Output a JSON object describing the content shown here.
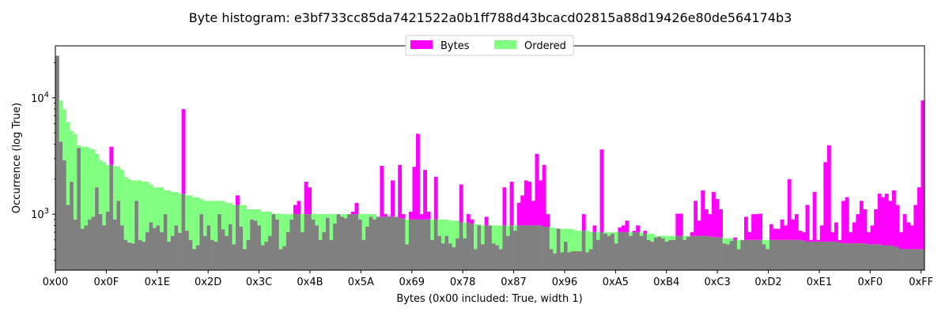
{
  "chart_data": {
    "type": "bar",
    "title": "Byte histogram: e3bf733cc85da7421522a0b1ff788d43bcacd02815a88d19426e80de564174b3",
    "xlabel": "Bytes (0x00 included: True, width 1)",
    "ylabel": "Occurrence (log True)",
    "y_scale": "log",
    "ylim": [
      330,
      28000
    ],
    "xlim": [
      0,
      255
    ],
    "x_ticks": [
      {
        "value": 0,
        "label": "0x00"
      },
      {
        "value": 15,
        "label": "0x0F"
      },
      {
        "value": 30,
        "label": "0x1E"
      },
      {
        "value": 45,
        "label": "0x2D"
      },
      {
        "value": 60,
        "label": "0x3C"
      },
      {
        "value": 75,
        "label": "0x4B"
      },
      {
        "value": 90,
        "label": "0x5A"
      },
      {
        "value": 105,
        "label": "0x69"
      },
      {
        "value": 120,
        "label": "0x78"
      },
      {
        "value": 135,
        "label": "0x87"
      },
      {
        "value": 150,
        "label": "0x96"
      },
      {
        "value": 165,
        "label": "0xA5"
      },
      {
        "value": 180,
        "label": "0xB4"
      },
      {
        "value": 195,
        "label": "0xC3"
      },
      {
        "value": 210,
        "label": "0xD2"
      },
      {
        "value": 225,
        "label": "0xE1"
      },
      {
        "value": 240,
        "label": "0xF0"
      },
      {
        "value": 255,
        "label": "0xFF"
      }
    ],
    "y_ticks": [
      {
        "value": 1000,
        "base": "10",
        "exp": "3"
      },
      {
        "value": 10000,
        "base": "10",
        "exp": "4"
      }
    ],
    "legend": {
      "position": "top-center",
      "entries": [
        "Bytes",
        "Ordered"
      ]
    },
    "colors": {
      "bytes": "#ff00ff",
      "ordered": "#80ff80",
      "overlap": "#808080"
    },
    "series": [
      {
        "name": "Bytes",
        "values": [
          23000,
          4200,
          2900,
          1200,
          1900,
          900,
          3700,
          750,
          800,
          900,
          950,
          1700,
          1000,
          800,
          1050,
          3800,
          900,
          1300,
          800,
          600,
          570,
          560,
          1300,
          600,
          580,
          700,
          850,
          760,
          800,
          700,
          1000,
          580,
          650,
          800,
          690,
          8000,
          720,
          600,
          500,
          540,
          1000,
          650,
          800,
          600,
          580,
          1000,
          740,
          650,
          820,
          550,
          1450,
          780,
          500,
          600,
          900,
          880,
          800,
          540,
          580,
          650,
          1000,
          900,
          500,
          530,
          700,
          900,
          1200,
          1300,
          700,
          1900,
          1700,
          900,
          800,
          600,
          700,
          930,
          600,
          830,
          1000,
          950,
          920,
          1000,
          1050,
          1250,
          900,
          600,
          780,
          950,
          900,
          950,
          2600,
          1000,
          960,
          1950,
          950,
          2650,
          1000,
          550,
          1050,
          2550,
          4900,
          1000,
          2400,
          1050,
          600,
          2100,
          650,
          560,
          650,
          560,
          520,
          620,
          1800,
          620,
          1000,
          900,
          500,
          800,
          550,
          950,
          800,
          560,
          540,
          500,
          1700,
          650,
          1900,
          720,
          1250,
          1450,
          1950,
          1900,
          1300,
          3300,
          1950,
          2650,
          1000,
          500,
          460,
          750,
          470,
          580,
          470,
          480,
          480,
          480,
          1000,
          470,
          500,
          800,
          600,
          3600,
          680,
          650,
          680,
          560,
          770,
          800,
          880,
          650,
          720,
          800,
          650,
          720,
          600,
          580,
          630,
          640,
          620,
          580,
          600,
          600,
          1010,
          1010,
          600,
          640,
          700,
          1300,
          880,
          1600,
          1100,
          1000,
          1550,
          1350,
          1100,
          560,
          550,
          590,
          630,
          500,
          600,
          950,
          700,
          1000,
          1000,
          1010,
          550,
          500,
          820,
          750,
          750,
          900,
          800,
          2000,
          900,
          1000,
          720,
          700,
          1200,
          600,
          1550,
          600,
          800,
          2800,
          3900,
          700,
          850,
          600,
          1300,
          1400,
          700,
          850,
          1000,
          1300,
          1100,
          700,
          800,
          1100,
          1500,
          1400,
          1500,
          1300,
          1600,
          1200,
          700,
          1000,
          850,
          800,
          1200,
          1700,
          9500
        ]
      },
      {
        "name": "Ordered",
        "values": [
          23000,
          9500,
          8000,
          6200,
          5200,
          4900,
          3900,
          3800,
          3800,
          3700,
          3600,
          3300,
          2900,
          2800,
          2650,
          2650,
          2600,
          2550,
          2400,
          2100,
          2000,
          1950,
          1950,
          1950,
          1900,
          1900,
          1800,
          1700,
          1700,
          1700,
          1600,
          1600,
          1550,
          1550,
          1500,
          1500,
          1450,
          1450,
          1400,
          1400,
          1350,
          1300,
          1300,
          1300,
          1300,
          1300,
          1300,
          1250,
          1250,
          1200,
          1200,
          1200,
          1200,
          1100,
          1100,
          1100,
          1100,
          1050,
          1050,
          1050,
          1010,
          1010,
          1010,
          1000,
          1000,
          1000,
          1000,
          1000,
          1000,
          1000,
          1000,
          1000,
          1000,
          1000,
          1000,
          1000,
          1000,
          1000,
          1000,
          1000,
          1000,
          1000,
          1000,
          1000,
          1000,
          1000,
          1000,
          1000,
          1000,
          950,
          950,
          950,
          950,
          950,
          950,
          930,
          920,
          900,
          900,
          900,
          900,
          900,
          900,
          900,
          900,
          900,
          900,
          900,
          900,
          880,
          880,
          880,
          850,
          850,
          850,
          830,
          820,
          820,
          800,
          800,
          800,
          800,
          800,
          800,
          800,
          800,
          800,
          800,
          800,
          800,
          800,
          800,
          800,
          800,
          800,
          780,
          780,
          770,
          760,
          750,
          750,
          750,
          750,
          740,
          720,
          720,
          720,
          720,
          700,
          700,
          700,
          700,
          700,
          700,
          700,
          700,
          700,
          700,
          700,
          700,
          700,
          700,
          690,
          680,
          680,
          680,
          650,
          650,
          650,
          650,
          650,
          650,
          650,
          650,
          650,
          650,
          650,
          650,
          650,
          650,
          650,
          640,
          640,
          630,
          630,
          620,
          620,
          620,
          600,
          600,
          600,
          600,
          600,
          600,
          600,
          600,
          600,
          600,
          600,
          600,
          600,
          600,
          600,
          600,
          600,
          600,
          600,
          590,
          580,
          580,
          580,
          580,
          580,
          580,
          580,
          580,
          580,
          570,
          560,
          560,
          560,
          560,
          560,
          560,
          560,
          550,
          550,
          550,
          550,
          540,
          540,
          540,
          530,
          520,
          500,
          500,
          500,
          500,
          500,
          500,
          500,
          500,
          500,
          500,
          500,
          500,
          480,
          480,
          480,
          470,
          470,
          470,
          470,
          460,
          460
        ]
      }
    ]
  }
}
